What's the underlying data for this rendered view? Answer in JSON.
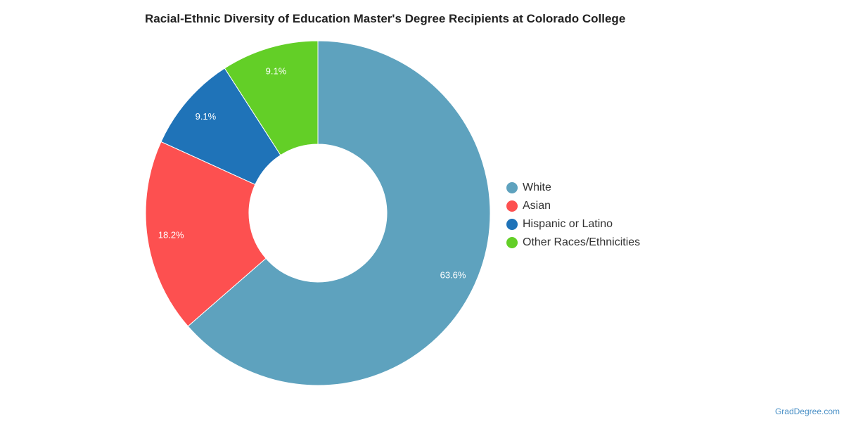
{
  "chart_data": {
    "type": "pie",
    "variant": "donut",
    "title": "Racial-Ethnic Diversity of Education Master's Degree Recipients at Colorado College",
    "categories": [
      "White",
      "Asian",
      "Hispanic or Latino",
      "Other Races/Ethnicities"
    ],
    "values": [
      63.6,
      18.2,
      9.1,
      9.1
    ],
    "value_labels": [
      "63.6%",
      "18.2%",
      "9.1%",
      "9.1%"
    ],
    "colors": [
      "#5ea2be",
      "#fd5050",
      "#1f73b8",
      "#63cf27"
    ],
    "legend_position": "right",
    "start_angle": "12 o'clock",
    "direction": "clockwise"
  },
  "credit": "GradDegree.com"
}
